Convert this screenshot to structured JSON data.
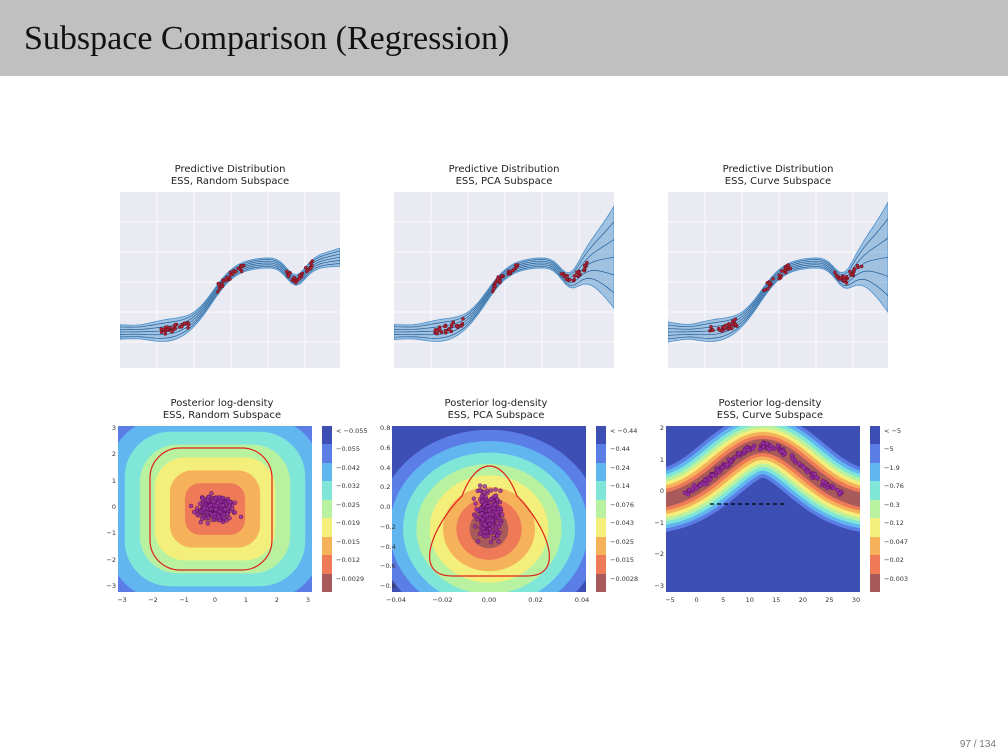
{
  "slide": {
    "title": "Subspace Comparison (Regression)",
    "page": "97 / 134"
  },
  "top_panels": [
    {
      "title1": "Predictive Distribution",
      "title2": "ESS, Random Subspace"
    },
    {
      "title1": "Predictive Distribution",
      "title2": "ESS, PCA Subspace"
    },
    {
      "title1": "Predictive Distribution",
      "title2": "ESS, Curve Subspace"
    }
  ],
  "bottom_panels": [
    {
      "title1": "Posterior log-density",
      "title2": "ESS, Random Subspace",
      "yticks": [
        "3",
        "2",
        "1",
        "0",
        "−1",
        "−2",
        "−3"
      ],
      "xticks": [
        "−3",
        "−2",
        "−1",
        "0",
        "1",
        "2",
        "3"
      ],
      "cbar": [
        "< −0.055",
        "−0.055",
        "−0.042",
        "−0.032",
        "−0.025",
        "−0.019",
        "−0.015",
        "−0.012",
        "−0.0029"
      ]
    },
    {
      "title1": "Posterior log-density",
      "title2": "ESS, PCA Subspace",
      "yticks": [
        "0.8",
        "0.6",
        "0.4",
        "0.2",
        "0.0",
        "−0.2",
        "−0.4",
        "−0.6",
        "−0.8"
      ],
      "xticks": [
        "−0.04",
        "−0.02",
        "0.00",
        "0.02",
        "0.04"
      ],
      "cbar": [
        "< −0.44",
        "−0.44",
        "−0.24",
        "−0.14",
        "−0.076",
        "−0.043",
        "−0.025",
        "−0.015",
        "−0.0028"
      ]
    },
    {
      "title1": "Posterior log-density",
      "title2": "ESS, Curve Subspace",
      "yticks": [
        "2",
        "1",
        "0",
        "−1",
        "−2",
        "−3"
      ],
      "xticks": [
        "−5",
        "0",
        "5",
        "10",
        "15",
        "20",
        "25",
        "30"
      ],
      "cbar": [
        "< −5",
        "−5",
        "−1.9",
        "−0.76",
        "−0.3",
        "−0.12",
        "−0.047",
        "−0.02",
        "−0.003"
      ]
    }
  ],
  "colors": {
    "cbar": [
      "#3d4fb5",
      "#5a7de6",
      "#61b6f0",
      "#7fe6d8",
      "#b8f2a0",
      "#f4ef7a",
      "#f5b25a",
      "#ee7a57",
      "#a85a5a"
    ],
    "band": "#4a90cc",
    "points": "#b02030"
  }
}
